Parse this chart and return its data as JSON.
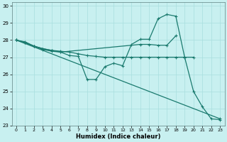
{
  "xlabel": "Humidex (Indice chaleur)",
  "bg_color": "#c8f0f0",
  "line_color": "#1a7a6e",
  "grid_color": "#a8dede",
  "xlim": [
    -0.5,
    23.5
  ],
  "ylim": [
    23,
    30.2
  ],
  "xticks": [
    0,
    1,
    2,
    3,
    4,
    5,
    6,
    7,
    8,
    9,
    10,
    11,
    12,
    13,
    14,
    15,
    16,
    17,
    18,
    19,
    20,
    21,
    22,
    23
  ],
  "yticks": [
    23,
    24,
    25,
    26,
    27,
    28,
    29,
    30
  ],
  "line1_x": [
    0,
    1,
    2,
    3,
    4,
    5,
    6,
    7,
    8,
    9,
    10,
    11,
    12,
    13,
    14,
    15,
    16,
    17,
    18,
    19,
    20,
    21,
    22,
    23
  ],
  "line1_y": [
    28,
    27.9,
    27.65,
    27.45,
    27.35,
    27.3,
    27.1,
    27.05,
    25.7,
    25.7,
    26.45,
    26.65,
    26.5,
    27.75,
    28.05,
    28.05,
    29.25,
    29.5,
    29.4,
    27.0,
    25.0,
    24.1,
    23.4,
    23.35
  ],
  "line2_x": [
    0,
    1,
    2,
    3,
    4,
    5,
    14,
    15,
    16,
    17,
    18
  ],
  "line2_y": [
    28,
    27.85,
    27.65,
    27.5,
    27.4,
    27.3,
    27.75,
    27.75,
    27.7,
    27.7,
    28.25
  ],
  "line3_x": [
    0,
    23
  ],
  "line3_y": [
    28,
    23.4
  ],
  "line4_x": [
    0,
    1,
    2,
    3,
    4,
    5,
    6,
    7,
    8,
    9,
    10,
    11,
    12,
    13,
    14,
    15,
    16,
    17,
    18,
    19,
    20
  ],
  "line4_y": [
    28,
    27.85,
    27.65,
    27.5,
    27.4,
    27.35,
    27.3,
    27.2,
    27.1,
    27.05,
    27.0,
    27.0,
    27.0,
    27.0,
    27.0,
    27.0,
    27.0,
    27.0,
    27.0,
    27.0,
    27.0
  ]
}
